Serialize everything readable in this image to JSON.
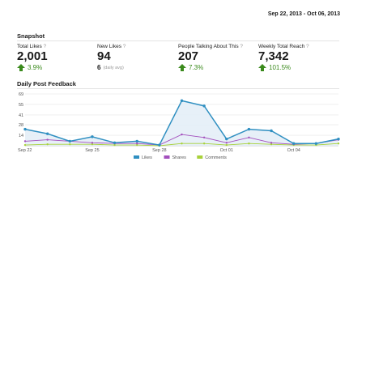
{
  "date_range": "Sep 22, 2013 - Oct 06, 2013",
  "snapshot": {
    "title": "Snapshot",
    "metrics": [
      {
        "label": "Total Likes",
        "help": "?",
        "value": "2,001",
        "change": "3.9%",
        "trend_icon": "green-up-arrow-icon"
      },
      {
        "label": "New Likes",
        "help": "?",
        "value": "94",
        "avg_value": "6",
        "avg_label": "(daily avg)"
      },
      {
        "label": "People Talking About This",
        "help": "?",
        "value": "207",
        "change": "7.3%",
        "trend_icon": "green-up-arrow-icon"
      },
      {
        "label": "Weekly Total Reach",
        "help": "?",
        "value": "7,342",
        "change": "101.5%",
        "trend_icon": "green-up-arrow-icon"
      }
    ]
  },
  "colors": {
    "likes": "#2f8fc1",
    "shares": "#a34fbd",
    "comments": "#a8d13a",
    "likes_fill": "#e4eef7",
    "up_arrow": "#3a8a1c"
  },
  "chart_data": {
    "type": "line",
    "title": "Daily Post Feedback",
    "x": [
      "Sep 22",
      "Sep 23",
      "Sep 24",
      "Sep 25",
      "Sep 26",
      "Sep 27",
      "Sep 28",
      "Sep 29",
      "Sep 30",
      "Oct 01",
      "Oct 02",
      "Oct 03",
      "Oct 04",
      "Oct 05",
      "Oct 06"
    ],
    "x_tick_labels": [
      "Sep 22",
      "Sep 25",
      "Sep 28",
      "Oct 01",
      "Oct 04"
    ],
    "y_ticks": [
      14,
      28,
      41,
      55,
      69
    ],
    "ylim": [
      0,
      69
    ],
    "grid": true,
    "legend_position": "bottom",
    "series": [
      {
        "name": "Likes",
        "values": [
          22,
          16,
          6,
          12,
          4,
          6,
          1,
          60,
          53,
          9,
          22,
          20,
          3,
          3,
          9
        ]
      },
      {
        "name": "Shares",
        "values": [
          6,
          8,
          6,
          4,
          3,
          3,
          1,
          15,
          11,
          4,
          11,
          4,
          2,
          3,
          8
        ]
      },
      {
        "name": "Comments",
        "values": [
          1,
          2,
          2,
          2,
          1,
          1,
          0,
          3,
          3,
          1,
          3,
          2,
          1,
          1,
          3
        ]
      }
    ]
  }
}
